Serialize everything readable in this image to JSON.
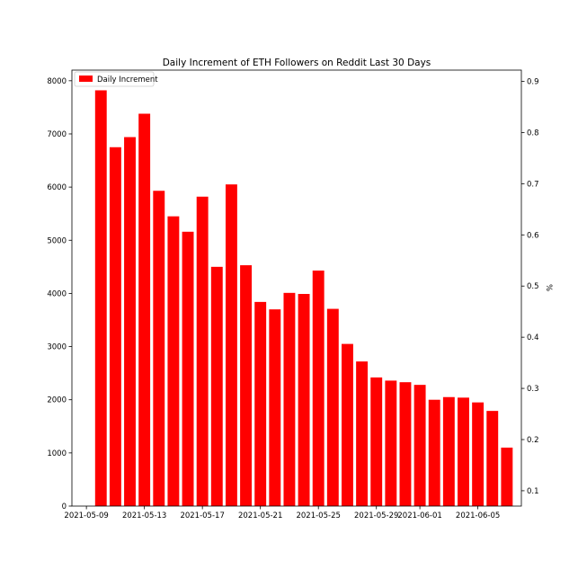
{
  "chart_data": {
    "type": "bar",
    "title": "Daily Increment of ETH Followers on Reddit Last 30 Days",
    "xlabel": "",
    "ylabel": "",
    "y2label": "%",
    "legend": {
      "placement": "top-left",
      "entries": [
        "Daily Increment"
      ]
    },
    "grid": false,
    "bar_color": "#ff0000",
    "x_dates": [
      "2021-05-10",
      "2021-05-11",
      "2021-05-12",
      "2021-05-13",
      "2021-05-14",
      "2021-05-15",
      "2021-05-16",
      "2021-05-17",
      "2021-05-18",
      "2021-05-19",
      "2021-05-20",
      "2021-05-21",
      "2021-05-22",
      "2021-05-23",
      "2021-05-24",
      "2021-05-25",
      "2021-05-26",
      "2021-05-27",
      "2021-05-28",
      "2021-05-29",
      "2021-05-30",
      "2021-05-31",
      "2021-06-01",
      "2021-06-02",
      "2021-06-03",
      "2021-06-04",
      "2021-06-05",
      "2021-06-06",
      "2021-06-07"
    ],
    "series": [
      {
        "name": "Daily Increment",
        "values": [
          7820,
          6750,
          6940,
          7380,
          5930,
          5450,
          5160,
          5820,
          4500,
          6050,
          4530,
          3840,
          3700,
          4010,
          3990,
          4430,
          3710,
          3050,
          2720,
          2420,
          2360,
          2330,
          2280,
          2000,
          2050,
          2040,
          1950,
          1790,
          1100
        ]
      }
    ],
    "xlim": [
      "2021-05-08",
      "2021-06-08"
    ],
    "ylim": [
      0,
      8200
    ],
    "x_ticks": [
      "2021-05-09",
      "2021-05-13",
      "2021-05-17",
      "2021-05-21",
      "2021-05-25",
      "2021-05-29",
      "2021-06-01",
      "2021-06-05"
    ],
    "y_ticks": [
      "0",
      "1000",
      "2000",
      "3000",
      "4000",
      "5000",
      "6000",
      "7000",
      "8000"
    ],
    "y2lim": [
      0.07,
      0.922
    ],
    "y2_ticks": [
      "0.1",
      "0.2",
      "0.3",
      "0.4",
      "0.5",
      "0.6",
      "0.7",
      "0.8",
      "0.9"
    ]
  }
}
